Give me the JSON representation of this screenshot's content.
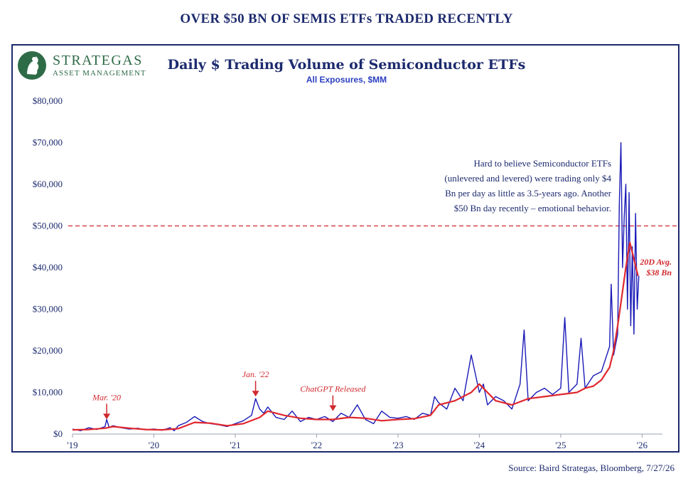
{
  "page": {
    "main_title": "OVER $50 BN OF SEMIS ETFs TRADED RECENTLY",
    "logo_name": "STRATEGAS",
    "logo_sub": "ASSET MANAGEMENT",
    "source": "Source: Baird Strategas, Bloomberg, 7/27/26"
  },
  "chart_data": {
    "type": "line",
    "title": "Daily $ Trading Volume of Semiconductor ETFs",
    "subtitle": "All Exposures, $MM",
    "xlabel": "",
    "ylabel": "",
    "xlim": [
      2019.0,
      2026.25
    ],
    "ylim": [
      0,
      80000
    ],
    "y_ticks": [
      0,
      10000,
      20000,
      30000,
      40000,
      50000,
      60000,
      70000,
      80000
    ],
    "y_tick_labels": [
      "$0",
      "$10,000",
      "$20,000",
      "$30,000",
      "$40,000",
      "$50,000",
      "$60,000",
      "$70,000",
      "$80,000"
    ],
    "x_ticks": [
      2019,
      2020,
      2021,
      2022,
      2023,
      2024,
      2025,
      2026
    ],
    "x_tick_labels": [
      "'19",
      "'20",
      "'21",
      "'22",
      "'23",
      "'24",
      "'25",
      "'26"
    ],
    "grid": false,
    "reference_line": {
      "value": 50000,
      "color": "#d0282e",
      "style": "dashed"
    },
    "series": [
      {
        "name": "",
        "color": "#1a1ab8",
        "x": [
          2019.0,
          2019.1,
          2019.2,
          2019.3,
          2019.4,
          2019.42,
          2019.45,
          2019.5,
          2019.6,
          2019.7,
          2019.8,
          2019.9,
          2020.0,
          2020.1,
          2020.2,
          2020.25,
          2020.3,
          2020.4,
          2020.5,
          2020.6,
          2020.7,
          2020.8,
          2020.9,
          2021.0,
          2021.1,
          2021.2,
          2021.25,
          2021.3,
          2021.35,
          2021.4,
          2021.5,
          2021.6,
          2021.7,
          2021.8,
          2021.9,
          2022.0,
          2022.1,
          2022.2,
          2022.3,
          2022.4,
          2022.5,
          2022.6,
          2022.7,
          2022.8,
          2022.9,
          2023.0,
          2023.1,
          2023.2,
          2023.3,
          2023.4,
          2023.45,
          2023.5,
          2023.6,
          2023.7,
          2023.8,
          2023.9,
          2024.0,
          2024.05,
          2024.1,
          2024.2,
          2024.3,
          2024.4,
          2024.5,
          2024.55,
          2024.6,
          2024.7,
          2024.8,
          2024.9,
          2025.0,
          2025.05,
          2025.1,
          2025.2,
          2025.25,
          2025.3,
          2025.4,
          2025.5,
          2025.6,
          2025.62,
          2025.65,
          2025.7,
          2025.72,
          2025.74,
          2025.76,
          2025.78,
          2025.8,
          2025.82,
          2025.84,
          2025.86,
          2025.88,
          2025.9,
          2025.92,
          2025.94,
          2025.96
        ],
        "values": [
          1200,
          800,
          1500,
          1100,
          1800,
          3500,
          1600,
          2000,
          1500,
          1200,
          1400,
          1000,
          1200,
          900,
          1500,
          800,
          2000,
          2800,
          4200,
          3000,
          2500,
          2200,
          1800,
          2500,
          3200,
          4500,
          8500,
          6000,
          5000,
          6500,
          4000,
          3500,
          5500,
          3000,
          4000,
          3500,
          4200,
          3000,
          5000,
          4000,
          7000,
          3500,
          2500,
          5500,
          4000,
          3800,
          4200,
          3500,
          5000,
          4500,
          9000,
          7500,
          6000,
          11000,
          8000,
          19000,
          10000,
          12000,
          7000,
          9000,
          8000,
          6000,
          12000,
          25000,
          8000,
          10000,
          11000,
          9500,
          11000,
          28000,
          10000,
          12000,
          23000,
          11000,
          14000,
          15000,
          21000,
          36000,
          19000,
          24000,
          55000,
          70000,
          40000,
          52000,
          60000,
          30000,
          58000,
          26000,
          45000,
          24000,
          53000,
          30000,
          38000
        ]
      },
      {
        "name": "20D Avg.",
        "color": "#e0282e",
        "x": [
          2019.0,
          2019.2,
          2019.4,
          2019.5,
          2019.7,
          2019.9,
          2020.1,
          2020.3,
          2020.5,
          2020.7,
          2020.9,
          2021.1,
          2021.3,
          2021.4,
          2021.6,
          2021.8,
          2022.0,
          2022.2,
          2022.4,
          2022.6,
          2022.8,
          2023.0,
          2023.2,
          2023.4,
          2023.5,
          2023.7,
          2023.9,
          2024.0,
          2024.2,
          2024.4,
          2024.6,
          2024.8,
          2025.0,
          2025.2,
          2025.3,
          2025.4,
          2025.5,
          2025.6,
          2025.65,
          2025.7,
          2025.75,
          2025.8,
          2025.85,
          2025.9,
          2025.95
        ],
        "values": [
          1000,
          1100,
          1400,
          1800,
          1400,
          1100,
          1000,
          1300,
          2800,
          2600,
          2000,
          2500,
          4000,
          5500,
          4500,
          3800,
          3500,
          3500,
          4000,
          3800,
          3200,
          3500,
          3700,
          4500,
          7000,
          8000,
          10000,
          12000,
          8000,
          7000,
          8500,
          9000,
          9500,
          10000,
          11000,
          11500,
          13000,
          16000,
          20000,
          26000,
          33000,
          40000,
          46000,
          42000,
          38000
        ]
      }
    ],
    "annotations": [
      {
        "label": "Mar. '20",
        "x": 2019.42,
        "y": 2500
      },
      {
        "label": "Jan. '22",
        "x": 2021.25,
        "y": 8000
      },
      {
        "label": "ChatGPT Released",
        "x": 2022.2,
        "y": 4500
      }
    ],
    "callout_text": [
      "Hard to believe Semiconductor ETFs",
      "(unlevered and levered) were trading only $4",
      "Bn per day as little as 3.5-years ago. Another",
      "$50 Bn day recently – emotional behavior."
    ],
    "avg_label": [
      "20D Avg.",
      "$38 Bn"
    ]
  }
}
